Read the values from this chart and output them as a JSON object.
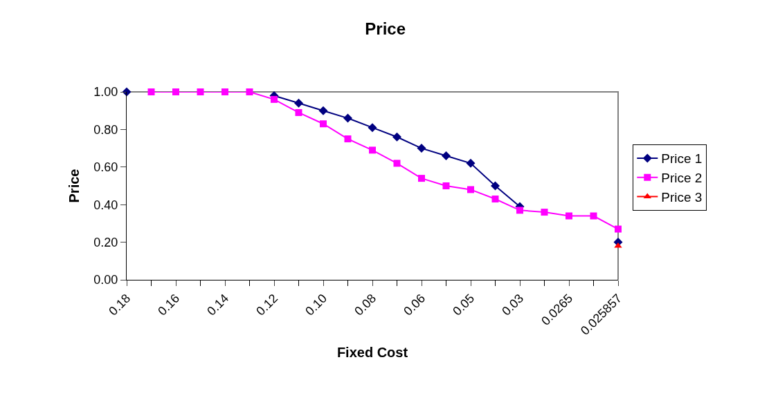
{
  "chart_data": {
    "type": "line",
    "title": "Price",
    "xlabel": "Fixed Cost",
    "ylabel": "Price",
    "categories": [
      "0.18",
      null,
      "0.16",
      null,
      "0.14",
      null,
      "0.12",
      null,
      "0.10",
      null,
      "0.08",
      null,
      "0.06",
      null,
      "0.05",
      null,
      "0.03",
      null,
      "0.0265",
      null,
      "0.025857"
    ],
    "series": [
      {
        "name": "Price 1",
        "color": "#000080",
        "marker": "diamond",
        "values": [
          1.0,
          null,
          null,
          null,
          null,
          null,
          0.98,
          0.94,
          0.9,
          0.86,
          0.81,
          0.76,
          0.7,
          0.66,
          0.62,
          0.5,
          0.39,
          null,
          null,
          null,
          0.2
        ]
      },
      {
        "name": "Price 2",
        "color": "#ff00ff",
        "marker": "square",
        "values": [
          null,
          1.0,
          1.0,
          1.0,
          1.0,
          1.0,
          0.96,
          0.89,
          0.83,
          0.75,
          0.69,
          0.62,
          0.54,
          0.5,
          0.48,
          0.43,
          0.37,
          0.36,
          0.34,
          0.34,
          0.27
        ]
      },
      {
        "name": "Price 3",
        "color": "#ff0000",
        "marker": "triangle",
        "values": [
          null,
          null,
          null,
          null,
          null,
          null,
          null,
          null,
          null,
          null,
          null,
          null,
          null,
          null,
          null,
          null,
          null,
          null,
          null,
          null,
          0.18
        ]
      }
    ],
    "ylim": [
      0,
      1
    ],
    "yticks": [
      {
        "value": 0,
        "label": "0.00"
      },
      {
        "value": 0.2,
        "label": "0.20"
      },
      {
        "value": 0.4,
        "label": "0.40"
      },
      {
        "value": 0.6,
        "label": "0.60"
      },
      {
        "value": 0.8,
        "label": "0.80"
      },
      {
        "value": 1,
        "label": "1.00"
      }
    ],
    "grid": false,
    "legend": "right",
    "line_style": "solid"
  }
}
